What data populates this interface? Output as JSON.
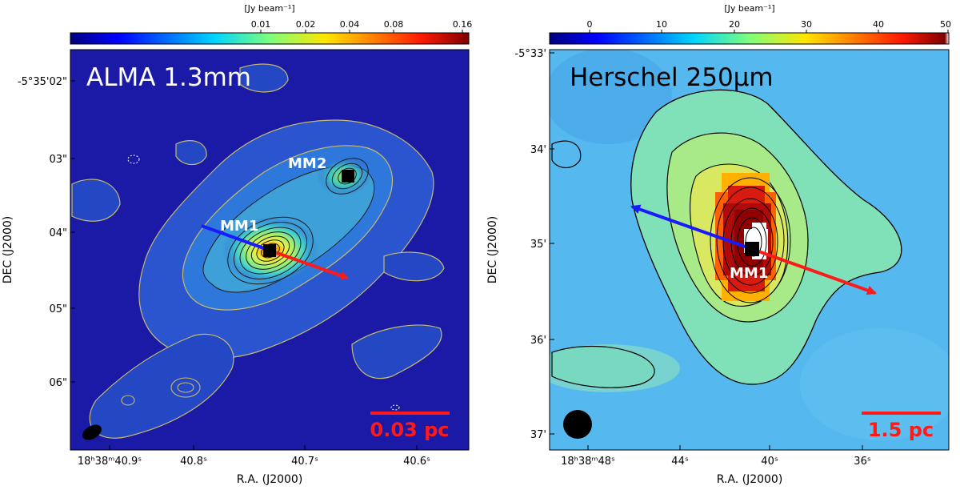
{
  "left_panel": {
    "colorbar": {
      "unit": "[Jy beam$^{-1}$]",
      "unit_display": "[Jy beam⁻¹]",
      "ticks": [
        "0.01",
        "0.02",
        "0.04",
        "0.08",
        "0.16"
      ]
    },
    "title": "ALMA 1.3mm",
    "sources": [
      "MM2",
      "MM1"
    ],
    "scalebar": "0.03 pc",
    "y_ticks": [
      "-5°35'02\"",
      "03\"",
      "04\"",
      "05\"",
      "06\""
    ],
    "x_ticks": [
      "18ʰ38ᵐ40.9ˢ",
      "40.8ˢ",
      "40.7ˢ",
      "40.6ˢ"
    ],
    "y_label": "DEC (J2000)",
    "x_label": "R.A. (J2000)"
  },
  "right_panel": {
    "colorbar": {
      "unit_display": "[Jy beam⁻¹]",
      "ticks": [
        "0",
        "10",
        "20",
        "30",
        "40",
        "50"
      ]
    },
    "title": "Herschel 250μm",
    "source": "MM1",
    "scalebar": "1.5 pc",
    "y_ticks": [
      "-5°33'",
      "34'",
      "35'",
      "36'",
      "37'"
    ],
    "x_ticks": [
      "18ʰ38ᵐ48ˢ",
      "44ˢ",
      "40ˢ",
      "36ˢ"
    ],
    "y_label": "DEC (J2000)",
    "x_label": "R.A. (J2000)"
  },
  "colors": {
    "background_left": "#1a1aa6",
    "background_right": "#55b8ee",
    "outflow_blue": "#1a1aff",
    "outflow_red": "#ff1a1a",
    "scalebar_red": "#ff1a1a"
  }
}
